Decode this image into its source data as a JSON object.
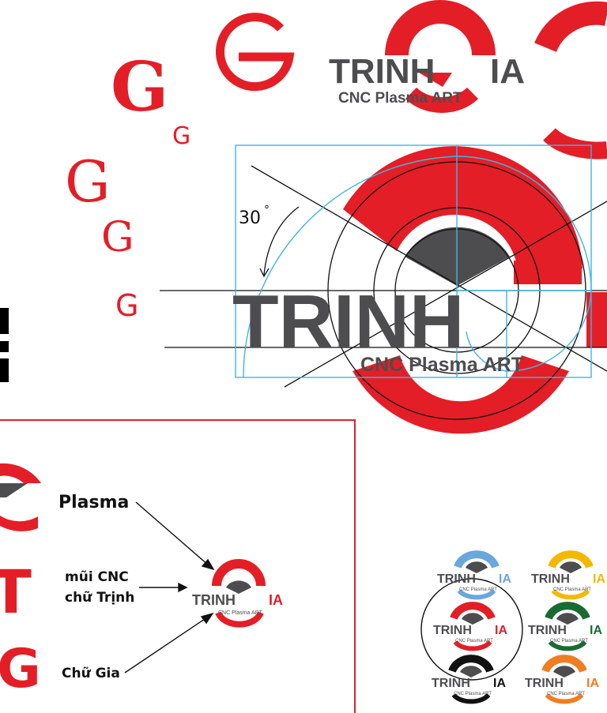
{
  "colors": {
    "red": "#e41e26",
    "dark_gray": "#4d4d4f",
    "guide_blue": "#3fb5e5",
    "black": "#000000",
    "frame_red": "#d8232a",
    "variant_blue": "#6aa7dd",
    "variant_yellow": "#f5b800",
    "variant_green": "#1a6b32",
    "variant_orange": "#ef7d22"
  },
  "logo_top": {
    "wordmark_left": "TRINH",
    "wordmark_right": "IA",
    "tagline": "CNC Plasma ART"
  },
  "construction": {
    "angle_label": "30",
    "degree_mark": "°",
    "wordmark": "TRINH",
    "tagline": "CNC Plasma ART"
  },
  "g_studies": {
    "letter": "G"
  },
  "concept_panel": {
    "labels": {
      "plasma": "Plasma",
      "tip_line1": "mũi CNC",
      "tip_line2": "chữ Trịnh",
      "gia": "Chữ Gia"
    },
    "letters": {
      "t": "T",
      "g": "G"
    },
    "logo": {
      "wordmark_left": "TRINH",
      "wordmark_right": "IA",
      "tagline": "CNC Plasma ART"
    }
  },
  "color_variants": [
    {
      "name": "blue",
      "arc": "#6aa7dd",
      "left": "TRINH",
      "right": "IA",
      "tagline": "CNC Plasma ART",
      "right_color": "#6aa7dd"
    },
    {
      "name": "yellow",
      "arc": "#f5b800",
      "left": "TRINH",
      "right": "IA",
      "tagline": "CNC Plasma ART",
      "right_color": "#f5b800"
    },
    {
      "name": "red",
      "arc": "#e41e26",
      "left": "TRINH",
      "right": "IA",
      "tagline": "CNC Plasma ART",
      "right_color": "#e41e26"
    },
    {
      "name": "green",
      "arc": "#1a6b32",
      "left": "TRINH",
      "right": "IA",
      "tagline": "CNC Plasma ART",
      "right_color": "#1a6b32"
    },
    {
      "name": "black",
      "arc": "#111111",
      "left": "TRINH",
      "right": "IA",
      "tagline": "CNC Plasma ART",
      "right_color": "#111111"
    },
    {
      "name": "orange",
      "arc": "#ef7d22",
      "left": "TRINH",
      "right": "IA",
      "tagline": "CNC Plasma ART",
      "right_color": "#ef7d22"
    }
  ]
}
